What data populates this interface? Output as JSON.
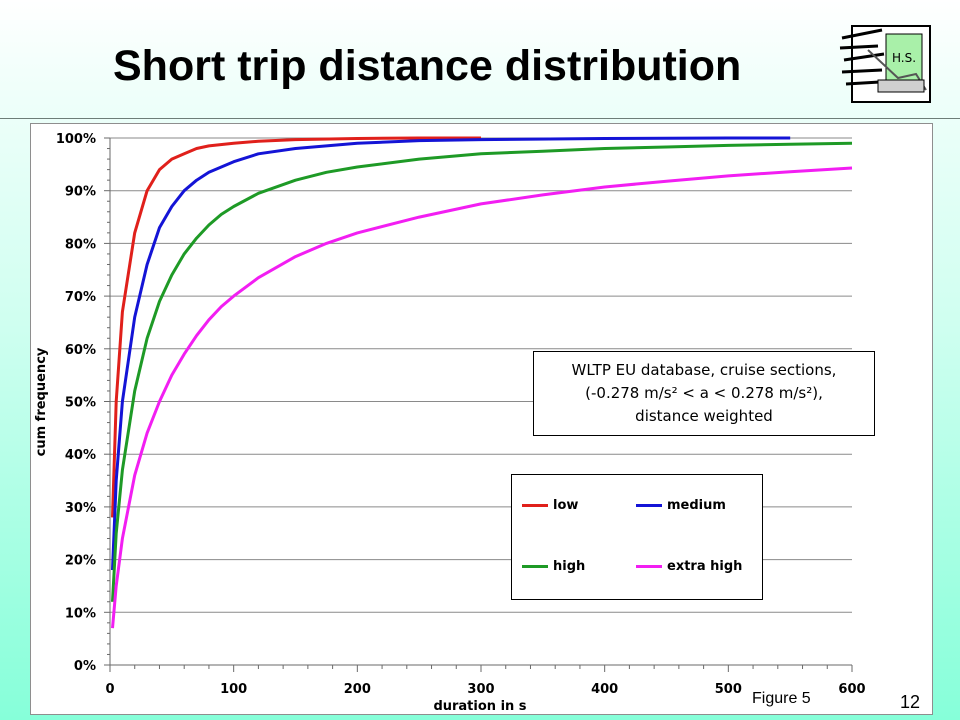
{
  "slide": {
    "title": "Short trip distance distribution",
    "figure_note": "Figure 5",
    "page_number": "12",
    "logo_text": "H.S."
  },
  "annotation": {
    "line1": "WLTP EU database, cruise sections,",
    "line2": "(-0.278 m/s² < a < 0.278 m/s²),",
    "line3": "distance weighted"
  },
  "chart_data": {
    "type": "line",
    "xlabel": "duration in s",
    "ylabel": "cum frequency",
    "xlim": [
      0,
      600
    ],
    "ylim": [
      0,
      100
    ],
    "x_ticks": [
      0,
      100,
      200,
      300,
      400,
      500,
      600
    ],
    "y_ticks": [
      0,
      10,
      20,
      30,
      40,
      50,
      60,
      70,
      80,
      90,
      100
    ],
    "y_tick_labels": [
      "0%",
      "10%",
      "20%",
      "30%",
      "40%",
      "50%",
      "60%",
      "70%",
      "80%",
      "90%",
      "100%"
    ],
    "grid": "horizontal",
    "legend_position": "center-right",
    "series": [
      {
        "name": "low",
        "color": "#e0201b",
        "x": [
          2,
          5,
          10,
          20,
          30,
          40,
          50,
          60,
          70,
          80,
          100,
          120,
          150,
          200,
          250,
          300
        ],
        "values": [
          28,
          50,
          67,
          82,
          90,
          94,
          96,
          97,
          98,
          98.5,
          99,
          99.4,
          99.7,
          99.9,
          100,
          100
        ]
      },
      {
        "name": "medium",
        "color": "#1414d6",
        "x": [
          2,
          5,
          10,
          20,
          30,
          40,
          50,
          60,
          70,
          80,
          90,
          100,
          120,
          150,
          200,
          250,
          300,
          400,
          500,
          550
        ],
        "values": [
          18,
          35,
          50,
          66,
          76,
          83,
          87,
          90,
          92,
          93.5,
          94.5,
          95.5,
          97,
          98,
          99,
          99.5,
          99.7,
          99.9,
          100,
          100
        ]
      },
      {
        "name": "high",
        "color": "#1e9a26",
        "x": [
          2,
          5,
          10,
          20,
          30,
          40,
          50,
          60,
          70,
          80,
          90,
          100,
          120,
          150,
          175,
          200,
          250,
          300,
          350,
          400,
          450,
          500,
          550,
          600
        ],
        "values": [
          12,
          25,
          37,
          52,
          62,
          69,
          74,
          78,
          81,
          83.5,
          85.5,
          87,
          89.5,
          92,
          93.5,
          94.5,
          96,
          97,
          97.5,
          98,
          98.3,
          98.6,
          98.8,
          99
        ]
      },
      {
        "name": "extra high",
        "color": "#f21ef2",
        "x": [
          2,
          5,
          10,
          20,
          30,
          40,
          50,
          60,
          70,
          80,
          90,
          100,
          120,
          150,
          175,
          200,
          250,
          300,
          350,
          400,
          450,
          500,
          550,
          600
        ],
        "values": [
          7,
          15,
          24,
          36,
          44,
          50,
          55,
          59,
          62.5,
          65.5,
          68,
          70,
          73.5,
          77.5,
          80,
          82,
          85,
          87.5,
          89.2,
          90.7,
          91.8,
          92.8,
          93.6,
          94.3
        ]
      }
    ]
  }
}
